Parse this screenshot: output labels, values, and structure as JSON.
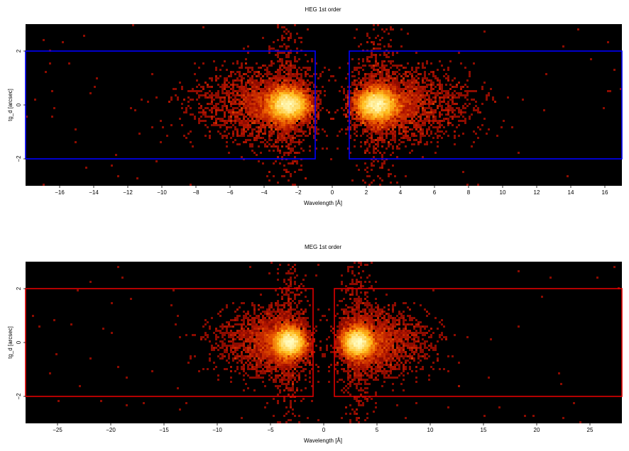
{
  "chart_data": [
    {
      "type": "heatmap",
      "title": "HEG 1st order",
      "xlabel": "Wavelength [Å]",
      "ylabel": "tg_d [arcsec]",
      "xlim": [
        -18,
        17
      ],
      "ylim": [
        -3,
        3
      ],
      "xticks": [
        -16,
        -14,
        -12,
        -10,
        -8,
        -6,
        -4,
        -2,
        0,
        2,
        4,
        6,
        8,
        10,
        12,
        14,
        16
      ],
      "xtick_labels": [
        "−16",
        "−14",
        "−12",
        "−10",
        "−8",
        "−6",
        "−4",
        "−2",
        "0",
        "2",
        "4",
        "6",
        "8",
        "10",
        "12",
        "14",
        "16"
      ],
      "yticks": [
        -2,
        0,
        2
      ],
      "ytick_labels": [
        "−2",
        "0",
        "2"
      ],
      "background": "#000000",
      "region_color": "#0000ff",
      "regions": [
        {
          "x": [
            -18,
            -1
          ],
          "y": [
            -2,
            2
          ]
        },
        {
          "x": [
            1,
            17
          ],
          "y": [
            -2,
            2
          ]
        }
      ],
      "clusters": [
        {
          "center_x": -2.6,
          "center_y": 0,
          "sigma_x": 1.0,
          "sigma_y": 0.5,
          "wing": -1
        },
        {
          "center_x": 2.6,
          "center_y": 0,
          "sigma_x": 1.0,
          "sigma_y": 0.5,
          "wing": 1
        }
      ]
    },
    {
      "type": "heatmap",
      "title": "MEG 1st order",
      "xlabel": "Wavelength [Å]",
      "ylabel": "tg_d [arcsec]",
      "xlim": [
        -28,
        28
      ],
      "ylim": [
        -3,
        3
      ],
      "xticks": [
        -25,
        -20,
        -15,
        -10,
        -5,
        0,
        5,
        10,
        15,
        20,
        25
      ],
      "xtick_labels": [
        "−25",
        "−20",
        "−15",
        "−10",
        "−5",
        "0",
        "5",
        "10",
        "15",
        "20",
        "25"
      ],
      "yticks": [
        -2,
        0,
        2
      ],
      "ytick_labels": [
        "−2",
        "0",
        "2"
      ],
      "background": "#000000",
      "region_color": "#e00000",
      "regions": [
        {
          "x": [
            -28,
            -1
          ],
          "y": [
            -2,
            2
          ]
        },
        {
          "x": [
            1,
            28
          ],
          "y": [
            -2,
            2
          ]
        }
      ],
      "clusters": [
        {
          "center_x": -3.2,
          "center_y": 0,
          "sigma_x": 1.2,
          "sigma_y": 0.45,
          "wing": -1
        },
        {
          "center_x": 3.2,
          "center_y": 0,
          "sigma_x": 1.2,
          "sigma_y": 0.45,
          "wing": 1
        }
      ]
    }
  ]
}
